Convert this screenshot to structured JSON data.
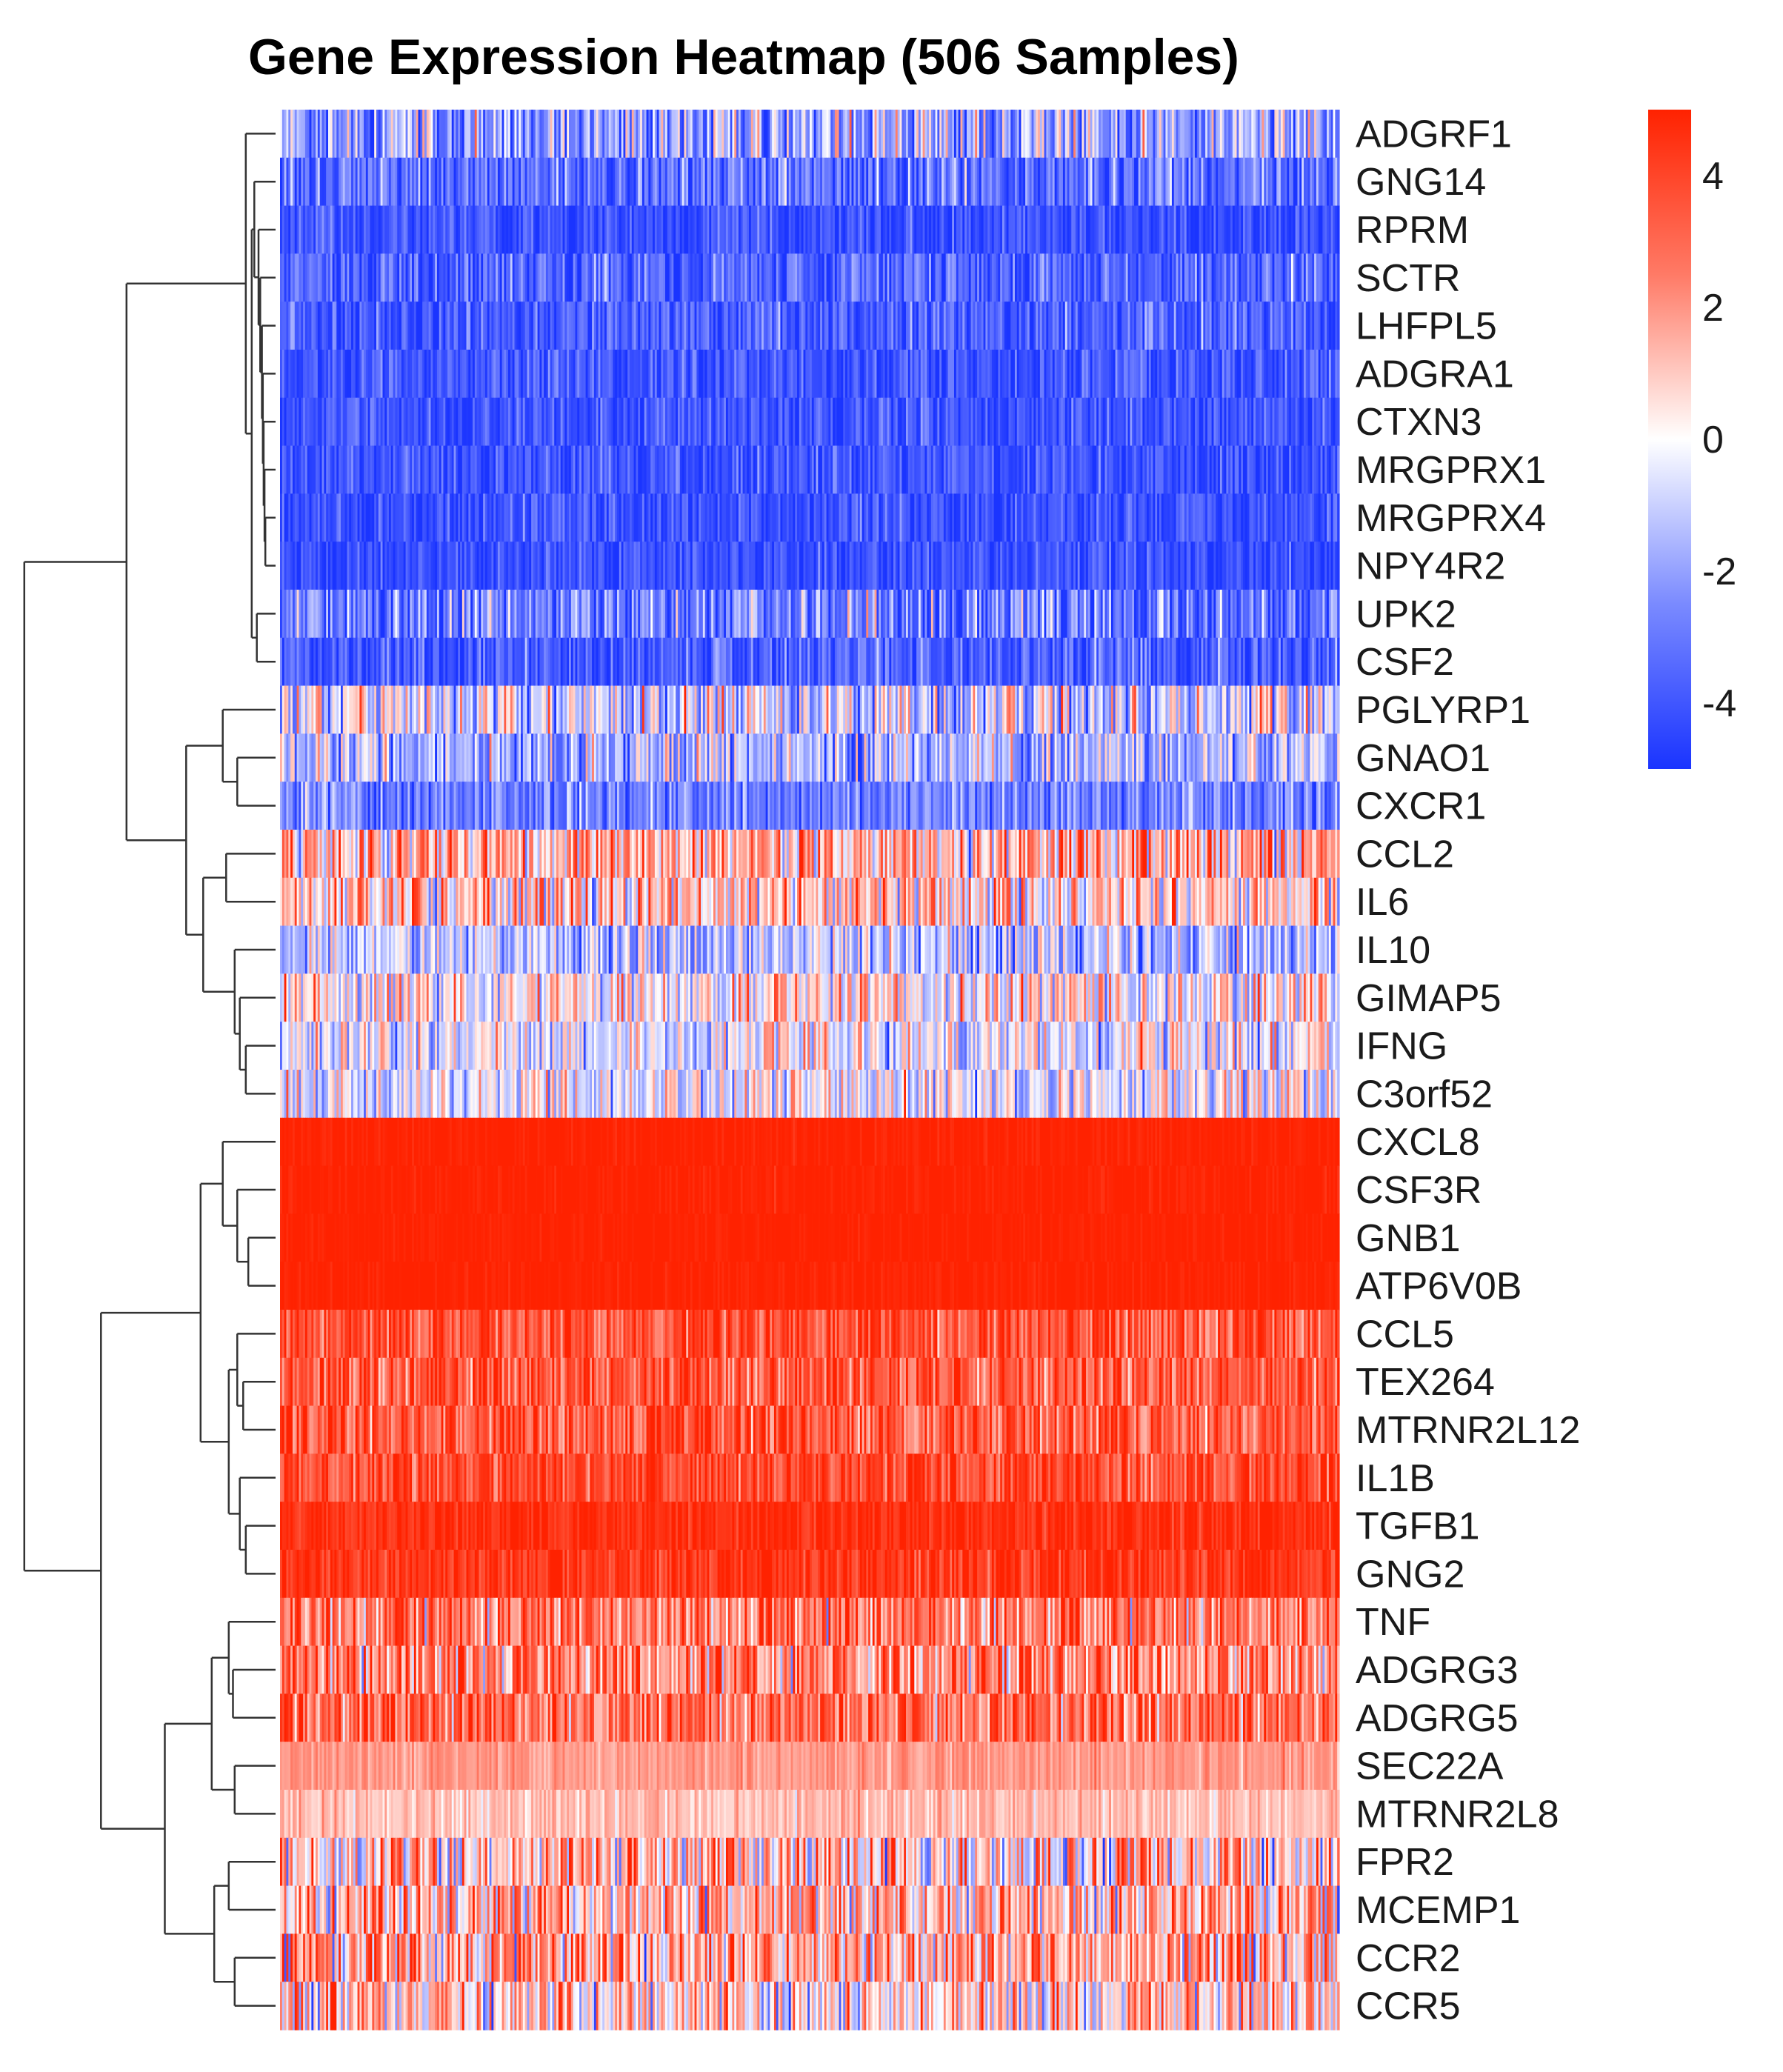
{
  "chart_data": {
    "type": "heatmap",
    "title": "Gene Expression Heatmap (506 Samples)",
    "n_samples": 506,
    "value_range": [
      -5,
      5
    ],
    "colorscale": {
      "low": "#1a34ff",
      "mid": "#ffffff",
      "high": "#ff2200"
    },
    "legend": {
      "position": "top-right",
      "ticks": [
        4,
        2,
        0,
        -2,
        -4
      ]
    },
    "row_dendrogram": true,
    "genes": [
      {
        "name": "ADGRF1",
        "mean": -2.0,
        "sd": 2.0
      },
      {
        "name": "GNG14",
        "mean": -3.3,
        "sd": 1.3
      },
      {
        "name": "RPRM",
        "mean": -4.2,
        "sd": 0.8
      },
      {
        "name": "SCTR",
        "mean": -3.7,
        "sd": 1.1
      },
      {
        "name": "LHFPL5",
        "mean": -3.8,
        "sd": 1.0
      },
      {
        "name": "ADGRA1",
        "mean": -4.0,
        "sd": 0.9
      },
      {
        "name": "CTXN3",
        "mean": -4.1,
        "sd": 0.8
      },
      {
        "name": "MRGPRX1",
        "mean": -4.1,
        "sd": 0.8
      },
      {
        "name": "MRGPRX4",
        "mean": -4.1,
        "sd": 0.8
      },
      {
        "name": "NPY4R2",
        "mean": -4.2,
        "sd": 0.7
      },
      {
        "name": "UPK2",
        "mean": -2.9,
        "sd": 1.5
      },
      {
        "name": "CSF2",
        "mean": -3.9,
        "sd": 1.0
      },
      {
        "name": "PGLYRP1",
        "mean": -0.7,
        "sd": 2.1
      },
      {
        "name": "GNAO1",
        "mean": -1.6,
        "sd": 1.6
      },
      {
        "name": "CXCR1",
        "mean": -2.8,
        "sd": 1.2
      },
      {
        "name": "CCL2",
        "mean": 1.5,
        "sd": 2.0
      },
      {
        "name": "IL6",
        "mean": 1.0,
        "sd": 2.0
      },
      {
        "name": "IL10",
        "mean": -1.3,
        "sd": 1.6
      },
      {
        "name": "GIMAP5",
        "mean": 0.3,
        "sd": 1.8
      },
      {
        "name": "IFNG",
        "mean": -0.3,
        "sd": 1.7
      },
      {
        "name": "C3orf52",
        "mean": -0.4,
        "sd": 1.6
      },
      {
        "name": "CXCL8",
        "mean": 5.0,
        "sd": 0.2
      },
      {
        "name": "CSF3R",
        "mean": 5.0,
        "sd": 0.2
      },
      {
        "name": "GNB1",
        "mean": 5.0,
        "sd": 0.15
      },
      {
        "name": "ATP6V0B",
        "mean": 5.0,
        "sd": 0.2
      },
      {
        "name": "CCL5",
        "mean": 3.8,
        "sd": 1.2
      },
      {
        "name": "TEX264",
        "mean": 3.6,
        "sd": 1.3
      },
      {
        "name": "MTRNR2L12",
        "mean": 3.5,
        "sd": 1.3
      },
      {
        "name": "IL1B",
        "mean": 4.0,
        "sd": 1.0
      },
      {
        "name": "TGFB1",
        "mean": 4.7,
        "sd": 0.5
      },
      {
        "name": "GNG2",
        "mean": 4.5,
        "sd": 0.7
      },
      {
        "name": "TNF",
        "mean": 2.8,
        "sd": 1.6
      },
      {
        "name": "ADGRG3",
        "mean": 2.6,
        "sd": 1.8
      },
      {
        "name": "ADGRG5",
        "mean": 3.0,
        "sd": 1.5
      },
      {
        "name": "SEC22A",
        "mean": 2.0,
        "sd": 0.5
      },
      {
        "name": "MTRNR2L8",
        "mean": 1.2,
        "sd": 0.6
      },
      {
        "name": "FPR2",
        "mean": 1.2,
        "sd": 2.3
      },
      {
        "name": "MCEMP1",
        "mean": 1.5,
        "sd": 2.0
      },
      {
        "name": "CCR2",
        "mean": 1.8,
        "sd": 2.2
      },
      {
        "name": "CCR5",
        "mean": 1.0,
        "sd": 2.0
      }
    ]
  }
}
